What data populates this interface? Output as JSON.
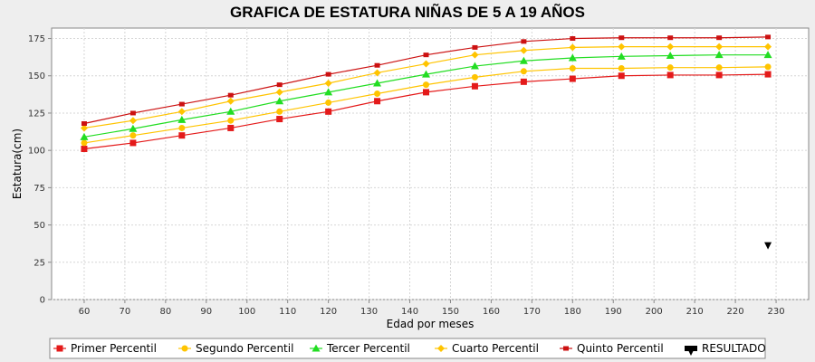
{
  "chart_data": {
    "type": "line",
    "title": "GRAFICA DE ESTATURA NIÑAS DE 5 A 19 AÑOS",
    "xlabel": "Edad por meses",
    "ylabel": "Estatura(cm)",
    "xlim": [
      52,
      238
    ],
    "ylim": [
      0,
      182
    ],
    "xticks": [
      60,
      70,
      80,
      90,
      100,
      110,
      120,
      130,
      140,
      150,
      160,
      170,
      180,
      190,
      200,
      210,
      220,
      230
    ],
    "yticks": [
      0,
      25,
      50,
      75,
      100,
      125,
      150,
      175
    ],
    "grid": true,
    "legend_position": "bottom",
    "x": [
      60,
      72,
      84,
      96,
      108,
      120,
      132,
      144,
      156,
      168,
      180,
      192,
      204,
      216,
      228
    ],
    "series": [
      {
        "name": "Primer Percentil",
        "color": "#e41a1a",
        "marker": "square",
        "values": [
          101,
          105,
          110,
          115,
          121,
          126,
          133,
          139,
          143,
          146,
          148,
          150,
          150.5,
          150.5,
          151
        ]
      },
      {
        "name": "Segundo Percentil",
        "color": "#ffc400",
        "marker": "circle",
        "values": [
          105,
          110,
          115,
          120,
          126,
          132,
          138,
          144,
          149,
          153,
          155,
          155,
          155.5,
          155.5,
          156
        ]
      },
      {
        "name": "Tercer Percentil",
        "color": "#22dd22",
        "marker": "triangle",
        "values": [
          109,
          114.5,
          120.5,
          126,
          133,
          139,
          145,
          151,
          156.5,
          160,
          162,
          163,
          163.5,
          164,
          164
        ]
      },
      {
        "name": "Cuarto Percentil",
        "color": "#ffc400",
        "marker": "diamond",
        "values": [
          115,
          120,
          126,
          133,
          139,
          145,
          152,
          158,
          164,
          167,
          169,
          169.5,
          169.5,
          169.5,
          169.5
        ]
      },
      {
        "name": "Quinto Percentil",
        "color": "#cc1111",
        "marker": "small-square",
        "values": [
          118,
          125,
          131,
          137,
          144,
          151,
          157,
          164,
          169,
          173,
          175,
          175.5,
          175.5,
          175.5,
          176
        ]
      },
      {
        "name": "RESULTADO",
        "color": "#000000",
        "marker": "triangle-down",
        "points": [
          {
            "x": 228,
            "y": 36
          }
        ]
      }
    ]
  }
}
